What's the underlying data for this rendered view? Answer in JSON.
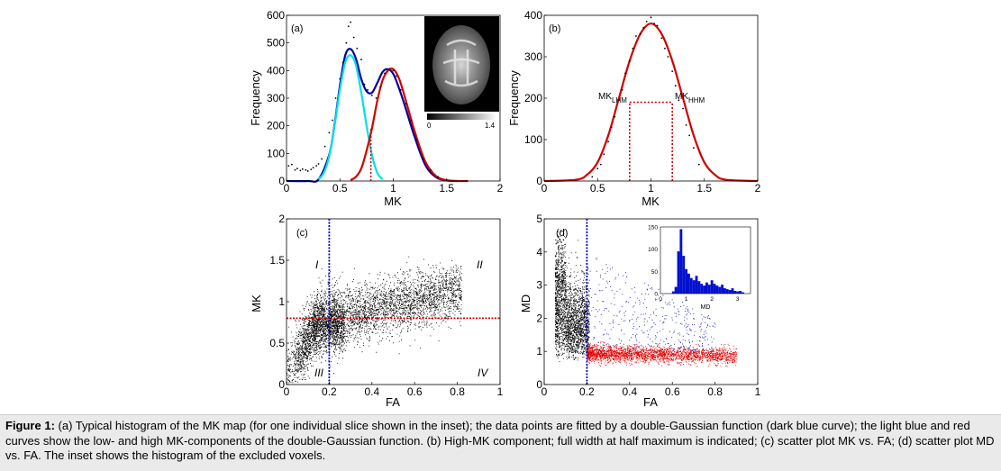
{
  "chart_data": [
    {
      "panel": "(a)",
      "type": "line",
      "xlabel": "MK",
      "ylabel": "Frequency",
      "xlim": [
        0,
        2
      ],
      "ylim": [
        0,
        600
      ],
      "xticks": [
        "0",
        "0.5",
        "1",
        "1.5",
        "2"
      ],
      "yticks": [
        "0",
        "100",
        "200",
        "300",
        "400",
        "500",
        "600"
      ],
      "series": [
        {
          "color": "#0000a0",
          "x": [
            0,
            0.2,
            0.3,
            0.4,
            0.45,
            0.5,
            0.55,
            0.6,
            0.65,
            0.7,
            0.75,
            0.8,
            0.85,
            0.9,
            0.95,
            1.0,
            1.05,
            1.1,
            1.2,
            1.3,
            1.4,
            1.5,
            1.6
          ],
          "y": [
            0,
            0,
            6,
            95,
            205,
            345,
            455,
            478,
            443,
            370,
            325,
            320,
            355,
            395,
            405,
            388,
            340,
            283,
            160,
            58,
            14,
            2,
            0
          ]
        },
        {
          "color": "#00e0e8",
          "x": [
            0.3,
            0.35,
            0.4,
            0.45,
            0.5,
            0.55,
            0.6,
            0.65,
            0.7,
            0.75,
            0.8,
            0.85,
            0.9
          ],
          "y": [
            6,
            30,
            90,
            200,
            330,
            430,
            455,
            420,
            320,
            200,
            95,
            30,
            6
          ]
        },
        {
          "color": "#d00000",
          "x": [
            0.6,
            0.65,
            0.7,
            0.75,
            0.8,
            0.85,
            0.9,
            0.95,
            1.0,
            1.05,
            1.1,
            1.2,
            1.3,
            1.4,
            1.5,
            1.6,
            1.7
          ],
          "y": [
            3,
            15,
            45,
            110,
            190,
            290,
            365,
            400,
            405,
            375,
            315,
            180,
            70,
            18,
            3,
            0,
            0
          ]
        },
        {
          "color": "#000000",
          "type": "scatter",
          "x": [
            0.02,
            0.05,
            0.08,
            0.1,
            0.13,
            0.15,
            0.18,
            0.2,
            0.23,
            0.25,
            0.28,
            0.3,
            0.33,
            0.36,
            0.4,
            0.43,
            0.46,
            0.5,
            0.53,
            0.56,
            0.58,
            0.6,
            0.63,
            0.66,
            0.7,
            0.73,
            0.76,
            0.8,
            0.84,
            0.88,
            0.92,
            0.96,
            1.0,
            1.03,
            1.07,
            1.12,
            1.17,
            1.22,
            1.28,
            1.35,
            1.42
          ],
          "y": [
            55,
            60,
            40,
            45,
            38,
            43,
            40,
            36,
            42,
            48,
            55,
            62,
            80,
            125,
            175,
            220,
            300,
            370,
            430,
            500,
            560,
            575,
            520,
            480,
            440,
            350,
            330,
            310,
            300,
            340,
            390,
            405,
            400,
            380,
            330,
            280,
            220,
            150,
            80,
            40,
            15
          ]
        }
      ],
      "annotations": [
        {
          "type": "dashed-vline",
          "x": 0.79,
          "color": "#d00000"
        }
      ],
      "inset": {
        "type": "brain-image",
        "colorbar_min": "0",
        "colorbar_max": "1.4"
      }
    },
    {
      "panel": "(b)",
      "type": "line",
      "xlabel": "MK",
      "ylabel": "Frequency",
      "xlim": [
        0,
        2
      ],
      "ylim": [
        0,
        400
      ],
      "xticks": [
        "0",
        "0.5",
        "1",
        "1.5",
        "2"
      ],
      "yticks": [
        "0",
        "100",
        "200",
        "300",
        "400"
      ],
      "series": [
        {
          "color": "#d00000",
          "x": [
            0,
            0.3,
            0.4,
            0.5,
            0.6,
            0.7,
            0.8,
            0.9,
            1.0,
            1.1,
            1.2,
            1.3,
            1.4,
            1.5,
            1.6,
            1.7,
            2.0
          ],
          "y": [
            0,
            3,
            15,
            45,
            110,
            200,
            290,
            355,
            380,
            355,
            290,
            200,
            110,
            45,
            15,
            3,
            0
          ]
        },
        {
          "color": "#000000",
          "type": "scatter",
          "x": [
            0.45,
            0.5,
            0.53,
            0.56,
            0.6,
            0.63,
            0.66,
            0.7,
            0.73,
            0.76,
            0.8,
            0.83,
            0.86,
            0.9,
            0.93,
            0.96,
            1.0,
            1.03,
            1.06,
            1.1,
            1.13,
            1.16,
            1.2,
            1.23,
            1.26,
            1.3,
            1.33,
            1.36,
            1.4,
            1.45
          ],
          "y": [
            10,
            30,
            40,
            65,
            95,
            130,
            155,
            195,
            220,
            260,
            290,
            320,
            350,
            355,
            370,
            385,
            395,
            380,
            375,
            345,
            320,
            300,
            265,
            230,
            195,
            175,
            135,
            110,
            80,
            40
          ]
        }
      ],
      "annotations": [
        {
          "type": "dotted-hline",
          "y": 190,
          "x0": 0.8,
          "x1": 1.2,
          "color": "#d00000"
        },
        {
          "type": "dotted-vline",
          "x": 0.8,
          "color": "#d00000"
        },
        {
          "type": "dotted-vline",
          "x": 1.2,
          "color": "#d00000"
        }
      ],
      "labels": [
        {
          "main": "MK",
          "sub": "LHM"
        },
        {
          "main": "MK",
          "sub": "HHM"
        }
      ]
    },
    {
      "panel": "(c)",
      "type": "scatter",
      "xlabel": "FA",
      "ylabel": "MK",
      "xlim": [
        0,
        1
      ],
      "ylim": [
        0,
        2
      ],
      "xticks": [
        "0",
        "0.2",
        "0.4",
        "0.6",
        "0.8",
        "1"
      ],
      "yticks": [
        "0",
        "0.5",
        "1",
        "1.5",
        "2"
      ],
      "vline": {
        "x": 0.2,
        "color": "#0000c0"
      },
      "hline": {
        "y": 0.8,
        "color": "#d00000"
      },
      "quadrants": [
        "I",
        "II",
        "III",
        "IV"
      ]
    },
    {
      "panel": "(d)",
      "type": "scatter",
      "xlabel": "FA",
      "ylabel": "MD",
      "xlim": [
        0,
        1
      ],
      "ylim": [
        0,
        5
      ],
      "xticks": [
        "0",
        "0.2",
        "0.4",
        "0.6",
        "0.8",
        "1"
      ],
      "yticks": [
        "0",
        "1",
        "2",
        "3",
        "4",
        "5"
      ],
      "vline": {
        "x": 0.2,
        "color": "#0000c0"
      },
      "inset": {
        "type": "bar",
        "xlabel": "MD",
        "xticks": [
          "0",
          "1",
          "2",
          "3"
        ],
        "yticks": [
          "0",
          "50",
          "100",
          "150"
        ],
        "xlim": [
          0,
          3.5
        ],
        "ylim": [
          0,
          150
        ],
        "bin_centers": [
          0.5,
          0.6,
          0.7,
          0.8,
          0.9,
          1.0,
          1.1,
          1.2,
          1.3,
          1.4,
          1.5,
          1.6,
          1.7,
          1.8,
          1.9,
          2.0,
          2.1,
          2.2,
          2.3,
          2.4,
          2.5,
          2.6,
          2.7,
          2.8,
          2.9,
          3.0,
          3.1,
          3.2
        ],
        "counts": [
          5,
          15,
          95,
          145,
          85,
          55,
          45,
          35,
          30,
          40,
          28,
          22,
          18,
          25,
          20,
          30,
          22,
          18,
          15,
          20,
          12,
          10,
          8,
          12,
          6,
          5,
          6,
          3
        ]
      }
    }
  ],
  "caption": {
    "label": "Figure 1:",
    "text": "(a) Typical histogram of the MK map (for one individual slice shown in the inset); the data points are fitted by a double-Gaussian function (dark blue curve); the light blue and red curves show the low- and high MK-components of the double-Gaussian function. (b) High-MK component; full width at half maximum is indicated; (c) scatter plot MK vs. FA; (d) scatter plot MD vs. FA. The inset shows the histogram of the excluded voxels."
  }
}
